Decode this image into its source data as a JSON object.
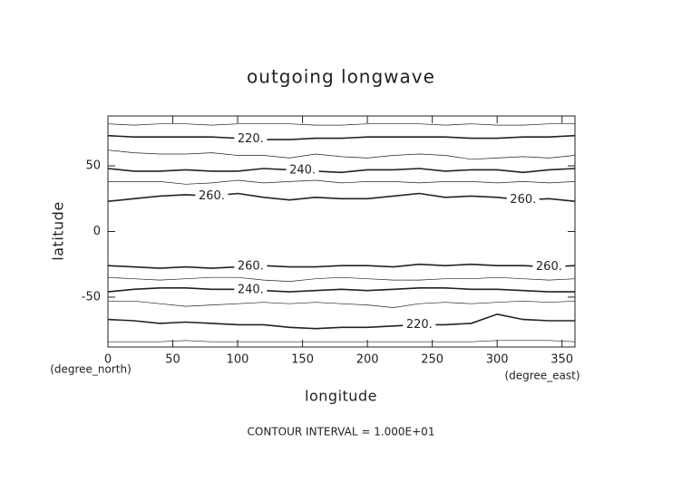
{
  "chart_data": {
    "type": "contour",
    "title": "outgoing longwave",
    "xlabel": "longitude",
    "ylabel": "latitude",
    "xunit": "(degree_east)",
    "yunit": "(degree_north)",
    "footer": "CONTOUR INTERVAL = 1.000E+01",
    "xlim": [
      0,
      360
    ],
    "ylim": [
      -88,
      88
    ],
    "xticks": [
      0,
      50,
      100,
      150,
      200,
      250,
      300,
      350
    ],
    "yticks": [
      -50,
      0,
      50
    ],
    "color": "#222",
    "x": [
      0,
      20,
      40,
      60,
      80,
      100,
      120,
      140,
      160,
      180,
      200,
      220,
      240,
      260,
      280,
      300,
      320,
      340,
      360
    ],
    "series": [
      {
        "level": 210,
        "values": [
          82,
          81,
          82,
          82,
          81,
          82,
          82,
          82,
          81,
          81,
          82,
          82,
          82,
          81,
          82,
          81,
          81,
          82,
          82
        ]
      },
      {
        "level": 220,
        "label": "220.",
        "values": [
          73,
          72,
          72,
          72,
          72,
          71,
          70,
          70,
          71,
          71,
          72,
          72,
          72,
          72,
          71,
          71,
          72,
          72,
          73
        ]
      },
      {
        "level": 230,
        "values": [
          62,
          60,
          59,
          59,
          60,
          58,
          58,
          56,
          59,
          57,
          56,
          58,
          59,
          58,
          55,
          56,
          57,
          56,
          58
        ]
      },
      {
        "level": 240,
        "label": "240.",
        "values": [
          48,
          46,
          46,
          47,
          46,
          46,
          48,
          47,
          46,
          45,
          47,
          47,
          48,
          46,
          47,
          47,
          45,
          47,
          48
        ]
      },
      {
        "level": 250,
        "values": [
          38,
          38,
          38,
          36,
          37,
          39,
          37,
          38,
          39,
          37,
          38,
          38,
          37,
          38,
          38,
          37,
          38,
          37,
          38
        ]
      },
      {
        "level": 260,
        "label": "260.",
        "values": [
          23,
          25,
          27,
          28,
          27,
          29,
          26,
          24,
          26,
          25,
          25,
          27,
          29,
          26,
          27,
          26,
          24,
          25,
          23
        ]
      },
      {
        "level": 260,
        "label": "260.",
        "values": [
          -26,
          -27,
          -28,
          -27,
          -28,
          -27,
          -26,
          -27,
          -27,
          -26,
          -26,
          -27,
          -25,
          -26,
          -25,
          -26,
          -26,
          -27,
          -26
        ]
      },
      {
        "level": 250,
        "values": [
          -35,
          -36,
          -37,
          -36,
          -35,
          -35,
          -37,
          -38,
          -36,
          -35,
          -36,
          -37,
          -37,
          -36,
          -36,
          -35,
          -36,
          -37,
          -36
        ]
      },
      {
        "level": 240,
        "label": "240.",
        "values": [
          -46,
          -44,
          -43,
          -43,
          -44,
          -44,
          -45,
          -46,
          -45,
          -44,
          -45,
          -44,
          -43,
          -43,
          -44,
          -44,
          -45,
          -46,
          -46
        ]
      },
      {
        "level": 230,
        "values": [
          -53,
          -53,
          -55,
          -57,
          -56,
          -55,
          -54,
          -55,
          -54,
          -55,
          -56,
          -58,
          -55,
          -54,
          -55,
          -54,
          -53,
          -54,
          -53
        ]
      },
      {
        "level": 220,
        "label": "220.",
        "values": [
          -67,
          -68,
          -70,
          -69,
          -70,
          -71,
          -71,
          -73,
          -74,
          -73,
          -73,
          -72,
          -71,
          -71,
          -70,
          -63,
          -67,
          -68,
          -68
        ]
      },
      {
        "level": 210,
        "values": [
          -84,
          -84,
          -84,
          -83,
          -84,
          -84,
          -84,
          -84,
          -84,
          -84,
          -84,
          -84,
          -84,
          -84,
          -84,
          -83,
          -83,
          -83,
          -84
        ]
      }
    ]
  }
}
